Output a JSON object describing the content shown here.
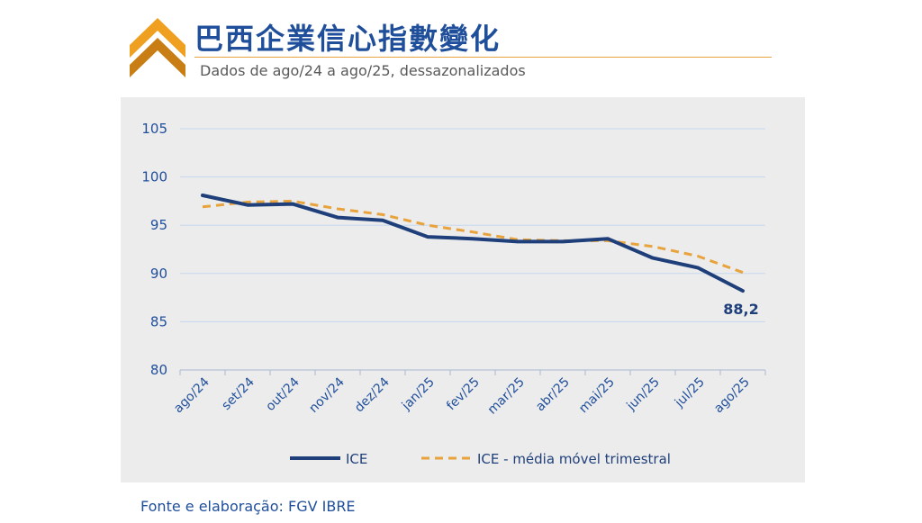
{
  "header": {
    "title": "巴西企業信心指數變化",
    "subtitle": "Dados de ago/24 a ago/25, dessazonalizados",
    "logo_icon": "chevron-up-icon",
    "accent_color": "#e8a33c",
    "title_color": "#1f4e9b"
  },
  "footer": {
    "source": "Fonte e elaboração: FGV IBRE"
  },
  "chart_data": {
    "type": "line",
    "x": [
      "ago/24",
      "set/24",
      "out/24",
      "nov/24",
      "dez/24",
      "jan/25",
      "fev/25",
      "mar/25",
      "abr/25",
      "mai/25",
      "jun/25",
      "jul/25",
      "ago/25"
    ],
    "ylim": [
      80,
      105
    ],
    "yticks": [
      80,
      85,
      90,
      95,
      100,
      105
    ],
    "grid": true,
    "legend_position": "bottom",
    "series": [
      {
        "name": "ICE",
        "values": [
          98.1,
          97.1,
          97.2,
          95.8,
          95.5,
          93.8,
          93.6,
          93.3,
          93.3,
          93.6,
          91.6,
          90.6,
          88.2
        ],
        "color": "#1f3f7a",
        "style": "solid",
        "end_label": "88,2"
      },
      {
        "name": "ICE - média móvel trimestral",
        "values": [
          96.9,
          97.4,
          97.5,
          96.7,
          96.1,
          95.0,
          94.3,
          93.5,
          93.4,
          93.4,
          92.8,
          91.8,
          90.1
        ],
        "color": "#e8a33c",
        "style": "dashed"
      }
    ]
  }
}
